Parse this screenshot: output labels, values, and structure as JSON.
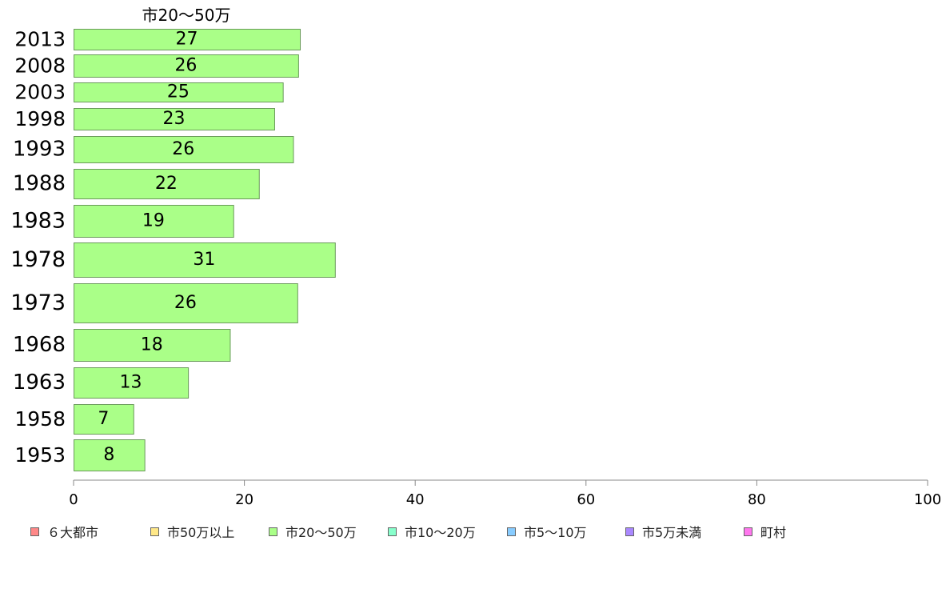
{
  "chart_data": {
    "type": "bar",
    "orientation": "horizontal",
    "title": "市20〜50万",
    "categories": [
      "2013",
      "2008",
      "2003",
      "1998",
      "1993",
      "1988",
      "1983",
      "1978",
      "1973",
      "1968",
      "1963",
      "1958",
      "1953"
    ],
    "series": [
      {
        "name": "市20〜50万",
        "color": "#aaff88",
        "values": [
          27,
          26,
          25,
          23,
          26,
          22,
          19,
          31,
          26,
          18,
          13,
          7,
          8
        ]
      }
    ],
    "bar_lengths": [
      26.5,
      26.3,
      24.5,
      23.5,
      25.7,
      21.7,
      18.7,
      30.6,
      26.2,
      18.3,
      13.4,
      7.0,
      8.3
    ],
    "xlim": [
      0,
      100
    ],
    "xticks": [
      "0",
      "20",
      "40",
      "60",
      "80",
      "100"
    ],
    "grid": false,
    "legend_position": "bottom",
    "legend": [
      {
        "label": "６大都市",
        "color": "#ff8888"
      },
      {
        "label": "市50万以上",
        "color": "#ffe888"
      },
      {
        "label": "市20〜50万",
        "color": "#aaff88"
      },
      {
        "label": "市10〜20万",
        "color": "#88ffcc"
      },
      {
        "label": "市5〜10万",
        "color": "#88ccff"
      },
      {
        "label": "市5万未満",
        "color": "#aa88ff"
      },
      {
        "label": "町村",
        "color": "#ff77ee"
      }
    ]
  }
}
